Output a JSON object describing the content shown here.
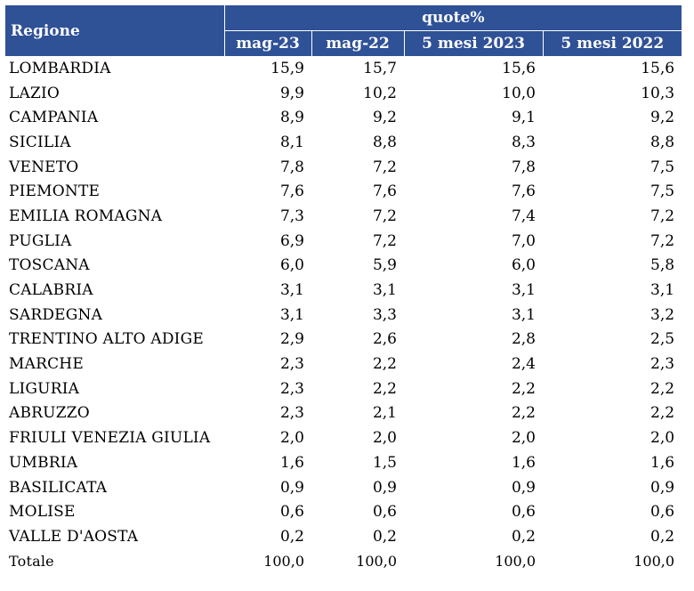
{
  "header": {
    "region_label": "Regione",
    "group_label": "quote%",
    "columns": [
      "mag-23",
      "mag-22",
      "5 mesi 2023",
      "5 mesi 2022"
    ]
  },
  "rows": [
    {
      "name": "LOMBARDIA",
      "v": [
        "15,9",
        "15,7",
        "15,6",
        "15,6"
      ]
    },
    {
      "name": "LAZIO",
      "v": [
        "9,9",
        "10,2",
        "10,0",
        "10,3"
      ]
    },
    {
      "name": "CAMPANIA",
      "v": [
        "8,9",
        "9,2",
        "9,1",
        "9,2"
      ]
    },
    {
      "name": "SICILIA",
      "v": [
        "8,1",
        "8,8",
        "8,3",
        "8,8"
      ]
    },
    {
      "name": "VENETO",
      "v": [
        "7,8",
        "7,2",
        "7,8",
        "7,5"
      ]
    },
    {
      "name": "PIEMONTE",
      "v": [
        "7,6",
        "7,6",
        "7,6",
        "7,5"
      ]
    },
    {
      "name": "EMILIA ROMAGNA",
      "v": [
        "7,3",
        "7,2",
        "7,4",
        "7,2"
      ]
    },
    {
      "name": "PUGLIA",
      "v": [
        "6,9",
        "7,2",
        "7,0",
        "7,2"
      ]
    },
    {
      "name": "TOSCANA",
      "v": [
        "6,0",
        "5,9",
        "6,0",
        "5,8"
      ]
    },
    {
      "name": "CALABRIA",
      "v": [
        "3,1",
        "3,1",
        "3,1",
        "3,1"
      ]
    },
    {
      "name": "SARDEGNA",
      "v": [
        "3,1",
        "3,3",
        "3,1",
        "3,2"
      ]
    },
    {
      "name": "TRENTINO ALTO ADIGE",
      "v": [
        "2,9",
        "2,6",
        "2,8",
        "2,5"
      ]
    },
    {
      "name": "MARCHE",
      "v": [
        "2,3",
        "2,2",
        "2,4",
        "2,3"
      ]
    },
    {
      "name": "LIGURIA",
      "v": [
        "2,3",
        "2,2",
        "2,2",
        "2,2"
      ]
    },
    {
      "name": "ABRUZZO",
      "v": [
        "2,3",
        "2,1",
        "2,2",
        "2,2"
      ]
    },
    {
      "name": "FRIULI VENEZIA GIULIA",
      "v": [
        "2,0",
        "2,0",
        "2,0",
        "2,0"
      ]
    },
    {
      "name": "UMBRIA",
      "v": [
        "1,6",
        "1,5",
        "1,6",
        "1,6"
      ]
    },
    {
      "name": "BASILICATA",
      "v": [
        "0,9",
        "0,9",
        "0,9",
        "0,9"
      ]
    },
    {
      "name": "MOLISE",
      "v": [
        "0,6",
        "0,6",
        "0,6",
        "0,6"
      ]
    },
    {
      "name": "VALLE D'AOSTA",
      "v": [
        "0,2",
        "0,2",
        "0,2",
        "0,2"
      ]
    },
    {
      "name": "Totale",
      "v": [
        "100,0",
        "100,0",
        "100,0",
        "100,0"
      ]
    }
  ],
  "colors": {
    "header_bg": "#2f5196",
    "header_text": "#ffffff"
  }
}
